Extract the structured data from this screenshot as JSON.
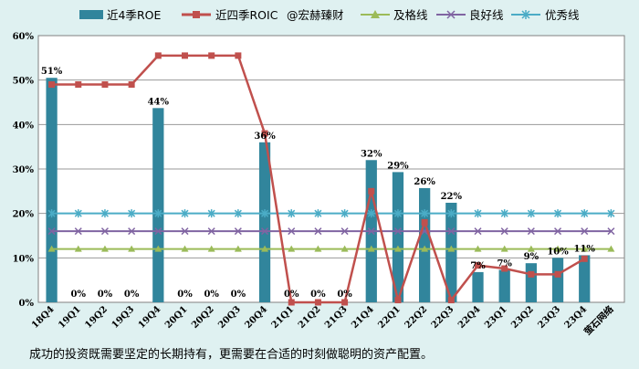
{
  "colors": {
    "background": "#dff1f1",
    "plot_background": "#ffffff",
    "roe_bar": "#31859c",
    "roic_line": "#c0504d",
    "pass_line": "#9bbb59",
    "good_line": "#8064a2",
    "excellent_line": "#4bacc6",
    "grid": "#9a9a9a"
  },
  "legend": {
    "roe": "近4季ROE",
    "roic": "近四季ROIC",
    "author": "@宏赫臻财",
    "pass": "及格线",
    "good": "良好线",
    "excellent": "优秀线"
  },
  "caption": "成功的投资既需要坚定的长期持有，更需要在合适的时刻做聪明的资产配置。",
  "chart_data": {
    "type": "bar",
    "categories": [
      "18Q4",
      "19Q1",
      "19Q2",
      "19Q3",
      "19Q4",
      "20Q1",
      "20Q2",
      "20Q3",
      "20Q4",
      "21Q1",
      "21Q2",
      "21Q3",
      "21Q4",
      "22Q1",
      "22Q2",
      "22Q3",
      "22Q4",
      "23Q1",
      "23Q2",
      "23Q3",
      "23Q4",
      "萤石网络"
    ],
    "y_ticks": [
      "0%",
      "10%",
      "20%",
      "30%",
      "40%",
      "50%",
      "60%"
    ],
    "ylim": [
      0,
      60
    ],
    "grid": true,
    "legend_position": "top",
    "series": [
      {
        "name": "近4季ROE",
        "kind": "bar",
        "values": [
          50.5,
          0,
          0,
          0,
          43.7,
          0,
          0,
          0,
          36,
          0,
          0,
          0,
          32,
          29.3,
          25.7,
          22.4,
          6.8,
          7.3,
          8.8,
          10,
          10.6,
          null
        ],
        "labels": [
          "51%",
          "0%",
          "0%",
          "0%",
          "44%",
          "0%",
          "0%",
          "0%",
          "36%",
          "0%",
          "0%",
          "0%",
          "32%",
          "29%",
          "26%",
          "22%",
          "7%",
          "7%",
          "9%",
          "10%",
          "11%",
          ""
        ]
      },
      {
        "name": "近四季ROIC",
        "kind": "line",
        "values": [
          49,
          49,
          49,
          49,
          55.5,
          55.5,
          55.5,
          55.5,
          38,
          0,
          0,
          0,
          25,
          0.5,
          18,
          0.5,
          8.3,
          7.6,
          6.3,
          6.3,
          9.8,
          null
        ]
      },
      {
        "name": "及格线",
        "kind": "line",
        "values": [
          12,
          12,
          12,
          12,
          12,
          12,
          12,
          12,
          12,
          12,
          12,
          12,
          12,
          12,
          12,
          12,
          12,
          12,
          12,
          12,
          12,
          12
        ]
      },
      {
        "name": "良好线",
        "kind": "line",
        "values": [
          16,
          16,
          16,
          16,
          16,
          16,
          16,
          16,
          16,
          16,
          16,
          16,
          16,
          16,
          16,
          16,
          16,
          16,
          16,
          16,
          16,
          16
        ]
      },
      {
        "name": "优秀线",
        "kind": "line",
        "values": [
          20,
          20,
          20,
          20,
          20,
          20,
          20,
          20,
          20,
          20,
          20,
          20,
          20,
          20,
          20,
          20,
          20,
          20,
          20,
          20,
          20,
          20
        ]
      }
    ]
  }
}
